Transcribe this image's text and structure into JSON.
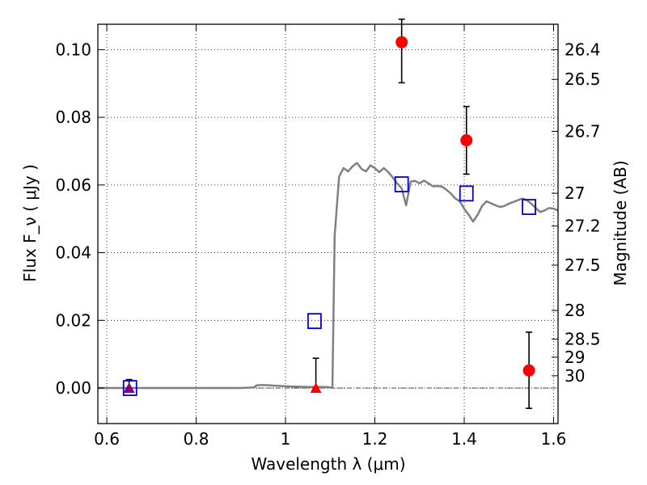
{
  "chart_data": {
    "type": "scatter",
    "title": "",
    "xlabel": "Wavelength λ (μm)",
    "ylabel": "Flux F_ν ( μJy )",
    "y2label": "Magnitude (AB)",
    "xlim": [
      0.58,
      1.61
    ],
    "ylim": [
      -0.0105,
      0.1075
    ],
    "x_ticks": [
      0.6,
      0.8,
      1.0,
      1.2,
      1.4,
      1.6
    ],
    "x_tick_labels": [
      "0.6",
      "0.8",
      "1",
      "1.2",
      "1.4",
      "1.6"
    ],
    "y_ticks": [
      0.0,
      0.02,
      0.04,
      0.06,
      0.08,
      0.1
    ],
    "y_tick_labels": [
      "0.00",
      "0.02",
      "0.04",
      "0.06",
      "0.08",
      "0.10"
    ],
    "mag_ticks": [
      26.4,
      26.5,
      26.7,
      27,
      27.2,
      27.5,
      28,
      28.5,
      29,
      30
    ],
    "mag_tick_labels": [
      "26.4",
      "26.5",
      "26.7",
      "27",
      "27.2",
      "27.5",
      "28",
      "28.5",
      "29",
      "30"
    ],
    "grid": true,
    "zero_line": true,
    "colors": {
      "model": "#808080",
      "detection": "#ff0000",
      "upper_limit": "#ff0000",
      "model_photometry": "#0000cc",
      "purple_marker": "#800080",
      "errorbar": "#000000"
    },
    "series": [
      {
        "kind": "model_sed_line",
        "x": [
          0.58,
          0.9,
          0.93,
          0.935,
          0.95,
          1.0,
          1.05,
          1.095,
          1.105,
          1.11,
          1.12,
          1.13,
          1.14,
          1.15,
          1.16,
          1.17,
          1.18,
          1.19,
          1.2,
          1.21,
          1.22,
          1.23,
          1.24,
          1.25,
          1.26,
          1.265,
          1.27,
          1.28,
          1.29,
          1.3,
          1.31,
          1.32,
          1.33,
          1.34,
          1.35,
          1.36,
          1.37,
          1.38,
          1.39,
          1.4,
          1.41,
          1.42,
          1.43,
          1.44,
          1.45,
          1.46,
          1.47,
          1.48,
          1.49,
          1.5,
          1.51,
          1.52,
          1.53,
          1.54,
          1.55,
          1.56,
          1.57,
          1.58,
          1.59,
          1.6,
          1.61
        ],
        "y": [
          0.0,
          0.0,
          0.0002,
          0.0008,
          0.0009,
          0.0005,
          0.0003,
          0.0003,
          0.0,
          0.045,
          0.0625,
          0.065,
          0.064,
          0.0655,
          0.0665,
          0.0648,
          0.064,
          0.0658,
          0.065,
          0.0638,
          0.065,
          0.0638,
          0.0622,
          0.0605,
          0.059,
          0.0565,
          0.054,
          0.061,
          0.0612,
          0.0605,
          0.0613,
          0.0605,
          0.0596,
          0.0597,
          0.0595,
          0.0586,
          0.0575,
          0.056,
          0.0552,
          0.053,
          0.0512,
          0.0492,
          0.0512,
          0.0538,
          0.0552,
          0.0546,
          0.054,
          0.0535,
          0.0538,
          0.0545,
          0.055,
          0.0555,
          0.056,
          0.0555,
          0.0545,
          0.0532,
          0.052,
          0.0525,
          0.0532,
          0.053,
          0.0525
        ]
      },
      {
        "kind": "detections",
        "x": [
          1.26,
          1.405,
          1.545
        ],
        "y": [
          0.1022,
          0.0732,
          0.0052
        ],
        "yerr_low": [
          0.0902,
          0.0632,
          -0.006
        ],
        "yerr_high": [
          0.109,
          0.0832,
          0.0165
        ]
      },
      {
        "kind": "upper_limits",
        "x": [
          0.65,
          1.068
        ],
        "y": [
          0.0,
          0.0
        ],
        "yerr_low": [
          0.0,
          0.0
        ],
        "yerr_high": [
          0.0025,
          0.0088
        ]
      },
      {
        "kind": "model_photometry_boxes",
        "x": [
          0.652,
          1.065,
          1.26,
          1.405,
          1.545
        ],
        "y": [
          0.0,
          0.0198,
          0.0602,
          0.0575,
          0.0535
        ]
      }
    ]
  }
}
